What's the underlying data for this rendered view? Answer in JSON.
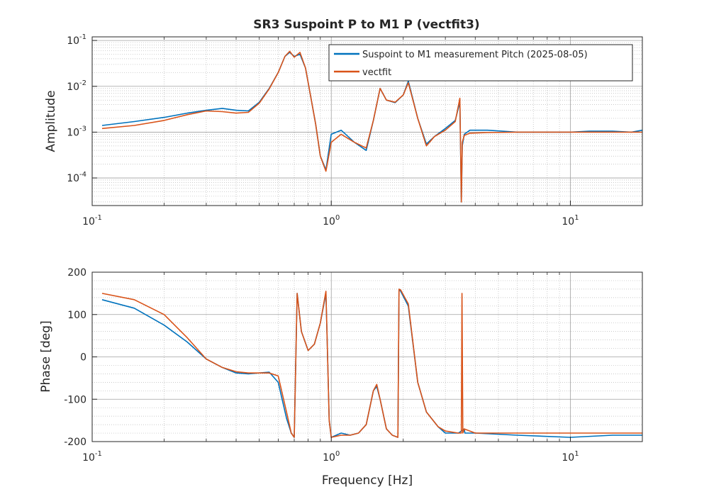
{
  "figure": {
    "title": "SR3 Suspoint P to M1 P (vectfit3)"
  },
  "chart_data": [
    {
      "type": "line",
      "panel": "amplitude",
      "title": "SR3 Suspoint P to M1 P (vectfit3)",
      "xlabel": "",
      "ylabel": "Amplitude",
      "xscale": "log",
      "yscale": "log",
      "xlim": [
        0.1,
        20
      ],
      "ylim": [
        2.5e-05,
        0.12
      ],
      "xticks": [
        {
          "value": 0.1,
          "base": "10",
          "exp": "-1"
        },
        {
          "value": 1,
          "base": "10",
          "exp": "0"
        },
        {
          "value": 10,
          "base": "10",
          "exp": "1"
        }
      ],
      "yticks": [
        {
          "value": 0.0001,
          "base": "10",
          "exp": "-4"
        },
        {
          "value": 0.001,
          "base": "10",
          "exp": "-3"
        },
        {
          "value": 0.01,
          "base": "10",
          "exp": "-2"
        },
        {
          "value": 0.1,
          "base": "10",
          "exp": "-1"
        }
      ],
      "grid": true,
      "minor_grid": true,
      "legend": {
        "position": "top-right"
      },
      "series": [
        {
          "name": "Suspoint to M1 measurement Pitch (2025-08-05)",
          "color": "#0072BD",
          "x": [
            0.11,
            0.15,
            0.2,
            0.25,
            0.3,
            0.35,
            0.4,
            0.45,
            0.5,
            0.55,
            0.6,
            0.64,
            0.67,
            0.7,
            0.74,
            0.78,
            0.82,
            0.86,
            0.9,
            0.95,
            1.0,
            1.1,
            1.25,
            1.4,
            1.5,
            1.6,
            1.7,
            1.85,
            2.0,
            2.1,
            2.3,
            2.5,
            2.7,
            3.0,
            3.3,
            3.45,
            3.5,
            3.53,
            3.6,
            3.8,
            4.5,
            6,
            8,
            10,
            12,
            15,
            18,
            20
          ],
          "y": [
            0.0014,
            0.0017,
            0.0021,
            0.0026,
            0.003,
            0.0033,
            0.003,
            0.0029,
            0.0045,
            0.009,
            0.02,
            0.045,
            0.055,
            0.045,
            0.05,
            0.025,
            0.006,
            0.0015,
            0.0003,
            0.00015,
            0.0009,
            0.0011,
            0.0006,
            0.0004,
            0.0018,
            0.009,
            0.005,
            0.0044,
            0.0065,
            0.013,
            0.002,
            0.00055,
            0.0008,
            0.0012,
            0.0018,
            0.0045,
            3e-05,
            0.0005,
            0.0009,
            0.0011,
            0.0011,
            0.001,
            0.001,
            0.001,
            0.00105,
            0.00105,
            0.001,
            0.0011
          ]
        },
        {
          "name": "vectfit",
          "color": "#D95319",
          "x": [
            0.11,
            0.15,
            0.2,
            0.25,
            0.3,
            0.35,
            0.4,
            0.45,
            0.5,
            0.55,
            0.6,
            0.64,
            0.67,
            0.7,
            0.74,
            0.78,
            0.82,
            0.86,
            0.9,
            0.95,
            1.0,
            1.1,
            1.25,
            1.4,
            1.5,
            1.6,
            1.7,
            1.85,
            2.0,
            2.1,
            2.3,
            2.5,
            2.7,
            3.0,
            3.3,
            3.45,
            3.5,
            3.53,
            3.6,
            3.8,
            4.5,
            6,
            8,
            10,
            12,
            15,
            18,
            20
          ],
          "y": [
            0.0012,
            0.0014,
            0.0018,
            0.0024,
            0.0029,
            0.0028,
            0.0026,
            0.0027,
            0.0043,
            0.0088,
            0.02,
            0.045,
            0.058,
            0.043,
            0.055,
            0.025,
            0.006,
            0.0015,
            0.0003,
            0.00014,
            0.0006,
            0.0009,
            0.0006,
            0.00045,
            0.0018,
            0.009,
            0.005,
            0.0045,
            0.0065,
            0.012,
            0.002,
            0.0005,
            0.0008,
            0.0011,
            0.0017,
            0.0055,
            3e-05,
            0.0006,
            0.00085,
            0.00095,
            0.00098,
            0.001,
            0.001,
            0.001,
            0.001,
            0.001,
            0.001,
            0.001
          ]
        }
      ]
    },
    {
      "type": "line",
      "panel": "phase",
      "title": "",
      "xlabel": "Frequency [Hz]",
      "ylabel": "Phase [deg]",
      "xscale": "log",
      "yscale": "linear",
      "xlim": [
        0.1,
        20
      ],
      "ylim": [
        -200,
        200
      ],
      "xticks": [
        {
          "value": 0.1,
          "base": "10",
          "exp": "-1"
        },
        {
          "value": 1,
          "base": "10",
          "exp": "0"
        },
        {
          "value": 10,
          "base": "10",
          "exp": "1"
        }
      ],
      "yticks": [
        {
          "value": -200,
          "label": "-200"
        },
        {
          "value": -100,
          "label": "-100"
        },
        {
          "value": 0,
          "label": "0"
        },
        {
          "value": 100,
          "label": "100"
        },
        {
          "value": 200,
          "label": "200"
        }
      ],
      "grid": true,
      "minor_grid": true,
      "series": [
        {
          "name": "Suspoint to M1 measurement Pitch (2025-08-05)",
          "color": "#0072BD",
          "x": [
            0.11,
            0.15,
            0.2,
            0.25,
            0.3,
            0.35,
            0.4,
            0.45,
            0.5,
            0.55,
            0.6,
            0.65,
            0.68,
            0.7,
            0.72,
            0.75,
            0.8,
            0.85,
            0.9,
            0.95,
            0.96,
            0.98,
            1.0,
            1.1,
            1.2,
            1.3,
            1.4,
            1.5,
            1.55,
            1.6,
            1.7,
            1.8,
            1.9,
            1.92,
            1.95,
            2.1,
            2.3,
            2.5,
            2.8,
            3.0,
            3.4,
            3.5,
            3.6,
            3.62,
            4,
            6,
            10,
            15,
            20
          ],
          "y": [
            135,
            115,
            75,
            35,
            -5,
            -25,
            -38,
            -40,
            -38,
            -36,
            -60,
            -145,
            -180,
            -190,
            150,
            60,
            15,
            30,
            80,
            150,
            50,
            -150,
            -190,
            -180,
            -185,
            -180,
            -160,
            -80,
            -70,
            -100,
            -170,
            -185,
            -190,
            160,
            155,
            120,
            -60,
            -130,
            -165,
            -180,
            -180,
            -175,
            -170,
            -180,
            -180,
            -185,
            -190,
            -185,
            -185
          ]
        },
        {
          "name": "vectfit",
          "color": "#D95319",
          "x": [
            0.11,
            0.15,
            0.2,
            0.25,
            0.3,
            0.35,
            0.4,
            0.45,
            0.5,
            0.55,
            0.6,
            0.65,
            0.68,
            0.7,
            0.72,
            0.75,
            0.8,
            0.85,
            0.9,
            0.95,
            0.96,
            0.98,
            1.0,
            1.1,
            1.2,
            1.3,
            1.4,
            1.5,
            1.55,
            1.6,
            1.7,
            1.8,
            1.9,
            1.92,
            1.95,
            2.1,
            2.3,
            2.5,
            2.8,
            3.0,
            3.4,
            3.5,
            3.52,
            3.55,
            3.6,
            4,
            6,
            10,
            15,
            20
          ],
          "y": [
            150,
            135,
            100,
            45,
            -5,
            -25,
            -35,
            -38,
            -38,
            -38,
            -45,
            -130,
            -180,
            -190,
            150,
            60,
            15,
            30,
            80,
            155,
            50,
            -150,
            -190,
            -185,
            -185,
            -180,
            -160,
            -80,
            -65,
            -100,
            -170,
            -185,
            -190,
            160,
            158,
            125,
            -60,
            -130,
            -165,
            -175,
            -180,
            -180,
            150,
            -180,
            -170,
            -180,
            -180,
            -180,
            -180,
            -180
          ]
        }
      ]
    }
  ]
}
